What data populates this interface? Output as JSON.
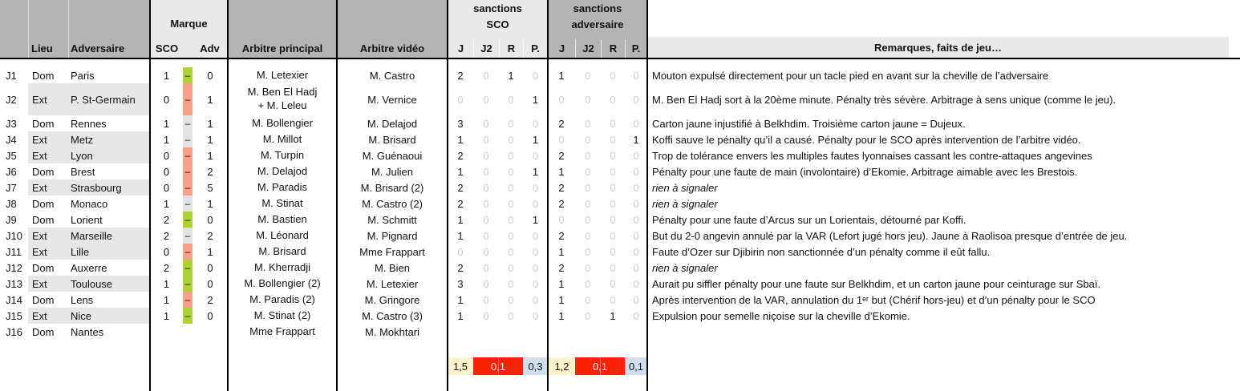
{
  "header": {
    "lieu": "Lieu",
    "adversaire": "Adversaire",
    "marque": "Marque",
    "marque_sco": "SCO",
    "marque_adv": "Adv",
    "arbitre_principal": "Arbitre principal",
    "arbitre_video": "Arbitre vidéo",
    "sanctions_sco": [
      "sanctions",
      "SCO"
    ],
    "sanctions_adversaire": [
      "sanctions",
      "adversaire"
    ],
    "card_columns": [
      "J",
      "J2",
      "R",
      "P."
    ],
    "remarques": "Remarques, faits de jeu…"
  },
  "score_separator": "–",
  "rows": [
    {
      "j": "J1",
      "lieu": "Dom",
      "adversaire": "Paris",
      "sco": "1",
      "adv": "0",
      "result": "win",
      "arbitre_principal": "M. Letexier",
      "arbitre_video": "M. Castro",
      "sanctions_sco": [
        "2",
        "0",
        "1",
        "0"
      ],
      "sanctions_adversaire": [
        "1",
        "0",
        "0",
        "0"
      ],
      "remarque": "Mouton expulsé directement pour un tacle pied en avant sur la cheville de l’adversaire",
      "remarque_italic": false
    },
    {
      "j": "J2",
      "lieu": "Ext",
      "adversaire": "P. St-Germain",
      "sco": "0",
      "adv": "1",
      "result": "loss",
      "arbitre_principal": "M. Ben El Hadj\n+ M. Leleu",
      "arbitre_video": "M. Vernice",
      "sanctions_sco": [
        "0",
        "0",
        "0",
        "1"
      ],
      "sanctions_adversaire": [
        "0",
        "0",
        "0",
        "0"
      ],
      "remarque": "M. Ben El Hadj sort à la 20ème minute. Pénalty très sévère. Arbitrage à sens unique (comme le jeu).",
      "remarque_italic": false
    },
    {
      "j": "J3",
      "lieu": "Dom",
      "adversaire": "Rennes",
      "sco": "1",
      "adv": "1",
      "result": "draw",
      "arbitre_principal": "M. Bollengier",
      "arbitre_video": "M. Delajod",
      "sanctions_sco": [
        "3",
        "0",
        "0",
        "0"
      ],
      "sanctions_adversaire": [
        "2",
        "0",
        "0",
        "0"
      ],
      "remarque": "Carton jaune injustifié à Belkhdim. Troisième carton jaune = Dujeux.",
      "remarque_italic": false
    },
    {
      "j": "J4",
      "lieu": "Ext",
      "adversaire": "Metz",
      "sco": "1",
      "adv": "1",
      "result": "draw",
      "arbitre_principal": "M. Millot",
      "arbitre_video": "M. Brisard",
      "sanctions_sco": [
        "1",
        "0",
        "0",
        "1"
      ],
      "sanctions_adversaire": [
        "0",
        "0",
        "0",
        "1"
      ],
      "remarque": "Koffi sauve le pénalty qu’il a causé. Pénalty pour le SCO après intervention de l’arbitre vidéo.",
      "remarque_italic": false
    },
    {
      "j": "J5",
      "lieu": "Ext",
      "adversaire": "Lyon",
      "sco": "0",
      "adv": "1",
      "result": "loss",
      "arbitre_principal": "M. Turpin",
      "arbitre_video": "M. Guénaoui",
      "sanctions_sco": [
        "2",
        "0",
        "0",
        "0"
      ],
      "sanctions_adversaire": [
        "2",
        "0",
        "0",
        "0"
      ],
      "remarque": "Trop de tolérance envers les multiples fautes lyonnaises cassant les contre-attaques angevines",
      "remarque_italic": false
    },
    {
      "j": "J6",
      "lieu": "Dom",
      "adversaire": "Brest",
      "sco": "0",
      "adv": "2",
      "result": "loss",
      "arbitre_principal": "M. Delajod",
      "arbitre_video": "M. Julien",
      "sanctions_sco": [
        "1",
        "0",
        "0",
        "1"
      ],
      "sanctions_adversaire": [
        "1",
        "0",
        "0",
        "0"
      ],
      "remarque": "Pénalty pour une faute de main (involontaire) d’Ekomie. Arbitrage aimable avec les Brestois.",
      "remarque_italic": false
    },
    {
      "j": "J7",
      "lieu": "Ext",
      "adversaire": "Strasbourg",
      "sco": "0",
      "adv": "5",
      "result": "loss",
      "arbitre_principal": "M. Paradis",
      "arbitre_video": "M. Brisard (2)",
      "sanctions_sco": [
        "2",
        "0",
        "0",
        "0"
      ],
      "sanctions_adversaire": [
        "2",
        "0",
        "0",
        "0"
      ],
      "remarque": "rien à signaler",
      "remarque_italic": true
    },
    {
      "j": "J8",
      "lieu": "Dom",
      "adversaire": "Monaco",
      "sco": "1",
      "adv": "1",
      "result": "draw",
      "arbitre_principal": "M. Stinat",
      "arbitre_video": "M. Castro (2)",
      "sanctions_sco": [
        "2",
        "0",
        "0",
        "0"
      ],
      "sanctions_adversaire": [
        "2",
        "0",
        "0",
        "0"
      ],
      "remarque": "rien à signaler",
      "remarque_italic": true
    },
    {
      "j": "J9",
      "lieu": "Dom",
      "adversaire": "Lorient",
      "sco": "2",
      "adv": "0",
      "result": "win",
      "arbitre_principal": "M. Bastien",
      "arbitre_video": "M. Schmitt",
      "sanctions_sco": [
        "1",
        "0",
        "0",
        "1"
      ],
      "sanctions_adversaire": [
        "0",
        "0",
        "0",
        "0"
      ],
      "remarque": "Pénalty pour une faute d’Arcus sur un Lorientais, détourné par Koffi.",
      "remarque_italic": false
    },
    {
      "j": "J10",
      "lieu": "Ext",
      "adversaire": "Marseille",
      "sco": "2",
      "adv": "2",
      "result": "draw",
      "arbitre_principal": "M. Léonard",
      "arbitre_video": "M. Pignard",
      "sanctions_sco": [
        "1",
        "0",
        "0",
        "0"
      ],
      "sanctions_adversaire": [
        "2",
        "0",
        "0",
        "0"
      ],
      "remarque": "But du 2-0 angevin annulé par la VAR (Lefort jugé hors jeu). Jaune à Raolisoa presque d’entrée de jeu.",
      "remarque_italic": false
    },
    {
      "j": "J11",
      "lieu": "Ext",
      "adversaire": "Lille",
      "sco": "0",
      "adv": "1",
      "result": "loss",
      "arbitre_principal": "M. Brisard",
      "arbitre_video": "Mme Frappart",
      "sanctions_sco": [
        "0",
        "0",
        "0",
        "0"
      ],
      "sanctions_adversaire": [
        "1",
        "0",
        "0",
        "0"
      ],
      "remarque": "Faute d’Ozer sur Djibirin non sanctionnée d’un pénalty comme il eût fallu.",
      "remarque_italic": false
    },
    {
      "j": "J12",
      "lieu": "Dom",
      "adversaire": "Auxerre",
      "sco": "2",
      "adv": "0",
      "result": "win",
      "arbitre_principal": "M. Kherradji",
      "arbitre_video": "M. Bien",
      "sanctions_sco": [
        "2",
        "0",
        "0",
        "0"
      ],
      "sanctions_adversaire": [
        "2",
        "0",
        "0",
        "0"
      ],
      "remarque": "rien à signaler",
      "remarque_italic": true
    },
    {
      "j": "J13",
      "lieu": "Ext",
      "adversaire": "Toulouse",
      "sco": "1",
      "adv": "0",
      "result": "win",
      "arbitre_principal": "M. Bollengier (2)",
      "arbitre_video": "M. Letexier",
      "sanctions_sco": [
        "3",
        "0",
        "0",
        "0"
      ],
      "sanctions_adversaire": [
        "1",
        "0",
        "0",
        "0"
      ],
      "remarque": "Aurait pu siffler pénalty pour une faute sur Belkhdim, et un carton jaune pour ceinturage sur Sbaï.",
      "remarque_italic": false
    },
    {
      "j": "J14",
      "lieu": "Dom",
      "adversaire": "Lens",
      "sco": "1",
      "adv": "2",
      "result": "loss",
      "arbitre_principal": "M. Paradis (2)",
      "arbitre_video": "M. Gringore",
      "sanctions_sco": [
        "1",
        "0",
        "0",
        "0"
      ],
      "sanctions_adversaire": [
        "1",
        "0",
        "0",
        "0"
      ],
      "remarque": "Après intervention de la VAR, annulation du 1ᵉʳ but (Chérif hors-jeu) et d’un pénalty pour le SCO",
      "remarque_italic": false
    },
    {
      "j": "J15",
      "lieu": "Ext",
      "adversaire": "Nice",
      "sco": "1",
      "adv": "0",
      "result": "win",
      "arbitre_principal": "M. Stinat (2)",
      "arbitre_video": "M. Castro (3)",
      "sanctions_sco": [
        "1",
        "0",
        "0",
        "0"
      ],
      "sanctions_adversaire": [
        "1",
        "0",
        "1",
        "0"
      ],
      "remarque": "Expulsion pour semelle niçoise sur la cheville d’Ekomie.",
      "remarque_italic": false
    },
    {
      "j": "J16",
      "lieu": "Dom",
      "adversaire": "Nantes",
      "sco": "",
      "adv": "",
      "result": "none",
      "arbitre_principal": "Mme Frappart",
      "arbitre_video": "M. Mokhtari",
      "sanctions_sco": [
        "",
        "",
        "",
        ""
      ],
      "sanctions_adversaire": [
        "",
        "",
        "",
        ""
      ],
      "remarque": "",
      "remarque_italic": false
    }
  ],
  "summary": {
    "sco": {
      "j": "1,5",
      "j2_r": "0,1",
      "p": "0,3"
    },
    "adversaire": {
      "j": "1,2",
      "j2_r": "0,1",
      "p": "0,1"
    }
  },
  "colors": {
    "win": "#aed136",
    "loss": "#f7a189",
    "draw": "#e3e3e3",
    "summary_yellow": "#fcf3cb",
    "summary_red": "#fb2106",
    "summary_blue": "#cfdfee",
    "header_dark": "#b4b4b4",
    "header_light": "#e9e9e9",
    "ext_row": "#e7e7e7",
    "zero_text": "#cccccc"
  }
}
